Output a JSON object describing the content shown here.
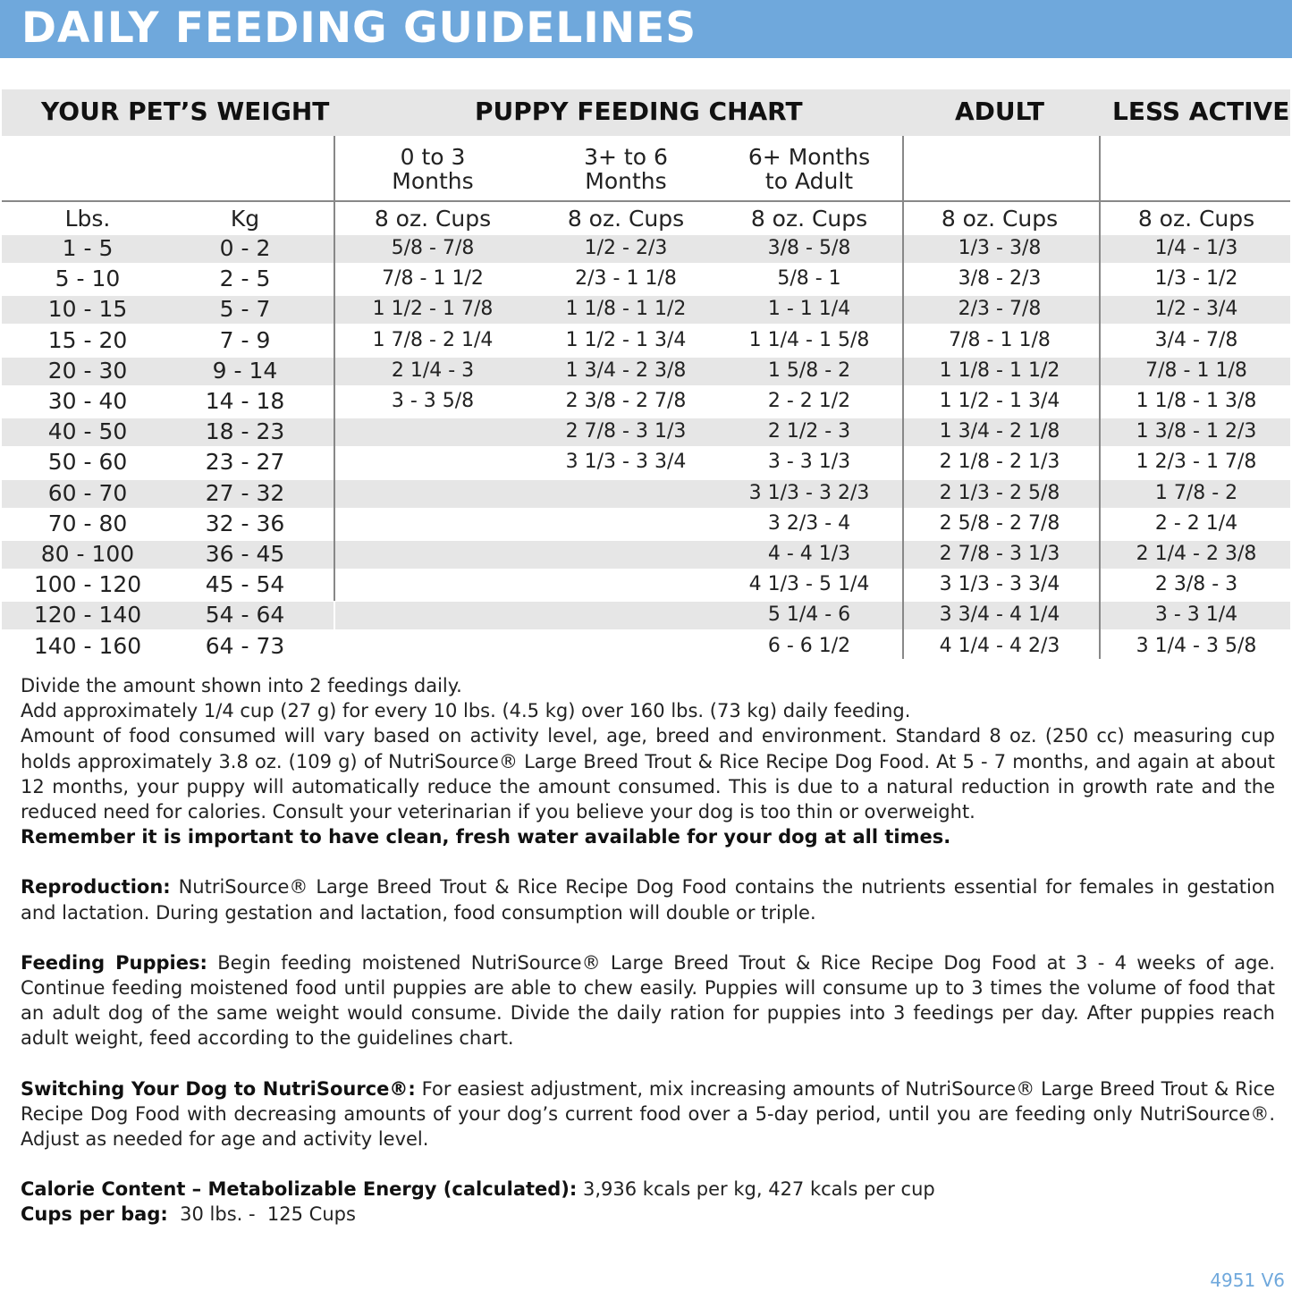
{
  "title": "DAILY FEEDING GUIDELINES",
  "headers": {
    "weight": "YOUR PET’S WEIGHT",
    "puppy": "PUPPY FEEDING CHART",
    "adult": "ADULT",
    "less_active": "LESS ACTIVE"
  },
  "subheaders": [
    "0 to 3\nMonths",
    "3+ to 6\nMonths",
    "6+ Months\nto Adult"
  ],
  "units": [
    "Lbs.",
    "Kg",
    "8 oz. Cups",
    "8 oz. Cups",
    "8 oz. Cups",
    "8 oz. Cups",
    "8 oz. Cups"
  ],
  "rows": [
    [
      "1 - 5",
      "0 - 2",
      "5/8 - 7/8",
      "1/2 - 2/3",
      "3/8 - 5/8",
      "1/3 - 3/8",
      "1/4 - 1/3"
    ],
    [
      "5 - 10",
      "2 - 5",
      "7/8 - 1 1/2",
      "2/3 - 1 1/8",
      "5/8 - 1",
      "3/8 - 2/3",
      "1/3 - 1/2"
    ],
    [
      "10 - 15",
      "5 - 7",
      "1 1/2 - 1 7/8",
      "1 1/8 - 1 1/2",
      "1 - 1 1/4",
      "2/3 - 7/8",
      "1/2 - 3/4"
    ],
    [
      "15 - 20",
      "7 - 9",
      "1 7/8 - 2 1/4",
      "1 1/2 - 1 3/4",
      "1 1/4 - 1 5/8",
      "7/8 - 1 1/8",
      "3/4 - 7/8"
    ],
    [
      "20 - 30",
      "9 - 14",
      "2 1/4 - 3",
      "1 3/4 - 2 3/8",
      "1 5/8 - 2",
      "1 1/8 - 1 1/2",
      "7/8 - 1 1/8"
    ],
    [
      "30 - 40",
      "14 - 18",
      "3 - 3 5/8",
      "2 3/8 - 2 7/8",
      "2 - 2 1/2",
      "1 1/2 - 1 3/4",
      "1 1/8 - 1 3/8"
    ],
    [
      "40 - 50",
      "18 - 23",
      "",
      "2 7/8 - 3 1/3",
      "2 1/2 - 3",
      "1 3/4 - 2 1/8",
      "1 3/8 - 1 2/3"
    ],
    [
      "50 - 60",
      "23 - 27",
      "",
      "3 1/3 - 3 3/4",
      "3 - 3 1/3",
      "2 1/8 - 2 1/3",
      "1 2/3 - 1 7/8"
    ],
    [
      "60 - 70",
      "27 - 32",
      "",
      "",
      "3 1/3 - 3 2/3",
      "2 1/3 - 2 5/8",
      "1 7/8 - 2"
    ],
    [
      "70 - 80",
      "32 - 36",
      "",
      "",
      "3 2/3 - 4",
      "2 5/8 - 2 7/8",
      "2 - 2 1/4"
    ],
    [
      "80 - 100",
      "36 - 45",
      "",
      "",
      "4 - 4 1/3",
      "2 7/8 - 3 1/3",
      "2 1/4 - 2 3/8"
    ],
    [
      "100 - 120",
      "45 - 54",
      "",
      "",
      "4 1/3 - 5 1/4",
      "3 1/3 - 3 3/4",
      "2 3/8 - 3"
    ],
    [
      "120 - 140",
      "54 - 64",
      "",
      "",
      "5 1/4 - 6",
      "3 3/4 - 4 1/4",
      "3 - 3 1/4"
    ],
    [
      "140 - 160",
      "64 - 73",
      "",
      "",
      "6 - 6 1/2",
      "4 1/4 - 4 2/3",
      "3 1/4 - 3 5/8"
    ]
  ],
  "notes": {
    "line1": "Divide the amount shown into 2 feedings daily.",
    "line2": "Add approximately 1/4 cup (27 g) for every 10 lbs. (4.5 kg) over 160 lbs. (73 kg) daily feeding.",
    "line3": "Amount of food consumed will vary based on activity level, age, breed and environment. Standard 8 oz. (250 cc) measuring cup holds approximately 3.8 oz. (109 g) of NutriSource® Large Breed Trout & Rice Recipe Dog Food. At 5 - 7 months, and again at about 12 months, your puppy will automatically reduce the amount consumed. This is due to a natural reduction in growth rate and the reduced need for calories. Consult your veterinarian if you believe your dog is too thin or overweight.",
    "water": "Remember it is important to have clean, fresh water available for your dog at all times.",
    "reproduction_label": "Reproduction:",
    "reproduction": " NutriSource® Large Breed Trout & Rice Recipe Dog Food contains the nutrients essential for females in gestation and lactation. During gestation and lactation, food consumption will double or triple.",
    "puppies_label": "Feeding Puppies:",
    "puppies": " Begin feeding moistened NutriSource® Large Breed Trout & Rice Recipe Dog Food at 3 - 4 weeks of age. Continue feeding moistened food until puppies are able to chew easily. Puppies will consume up to 3 times the volume of food that an adult dog of the same weight would consume. Divide the daily ration for puppies into 3 feedings per day. After puppies reach adult weight, feed according to the guidelines chart.",
    "switching_label": "Switching Your Dog to NutriSource®:",
    "switching": " For easiest adjustment, mix increasing amounts of NutriSource® Large Breed Trout & Rice Recipe Dog Food with decreasing amounts of your dog’s current food over a 5-day period, until you are feeding only NutriSource®. Adjust as needed for age and activity level.",
    "calorie_label": "Calorie Content – Metabolizable Energy (calculated):",
    "calorie": " 3,936 kcals per kg, 427 kcals per cup",
    "cups_label": "Cups per bag:",
    "cups": "  30 lbs. -  125 Cups"
  },
  "code": "4951 V6",
  "colors": {
    "banner": "#6fa8dc",
    "stripe": "#e6e6e6"
  }
}
